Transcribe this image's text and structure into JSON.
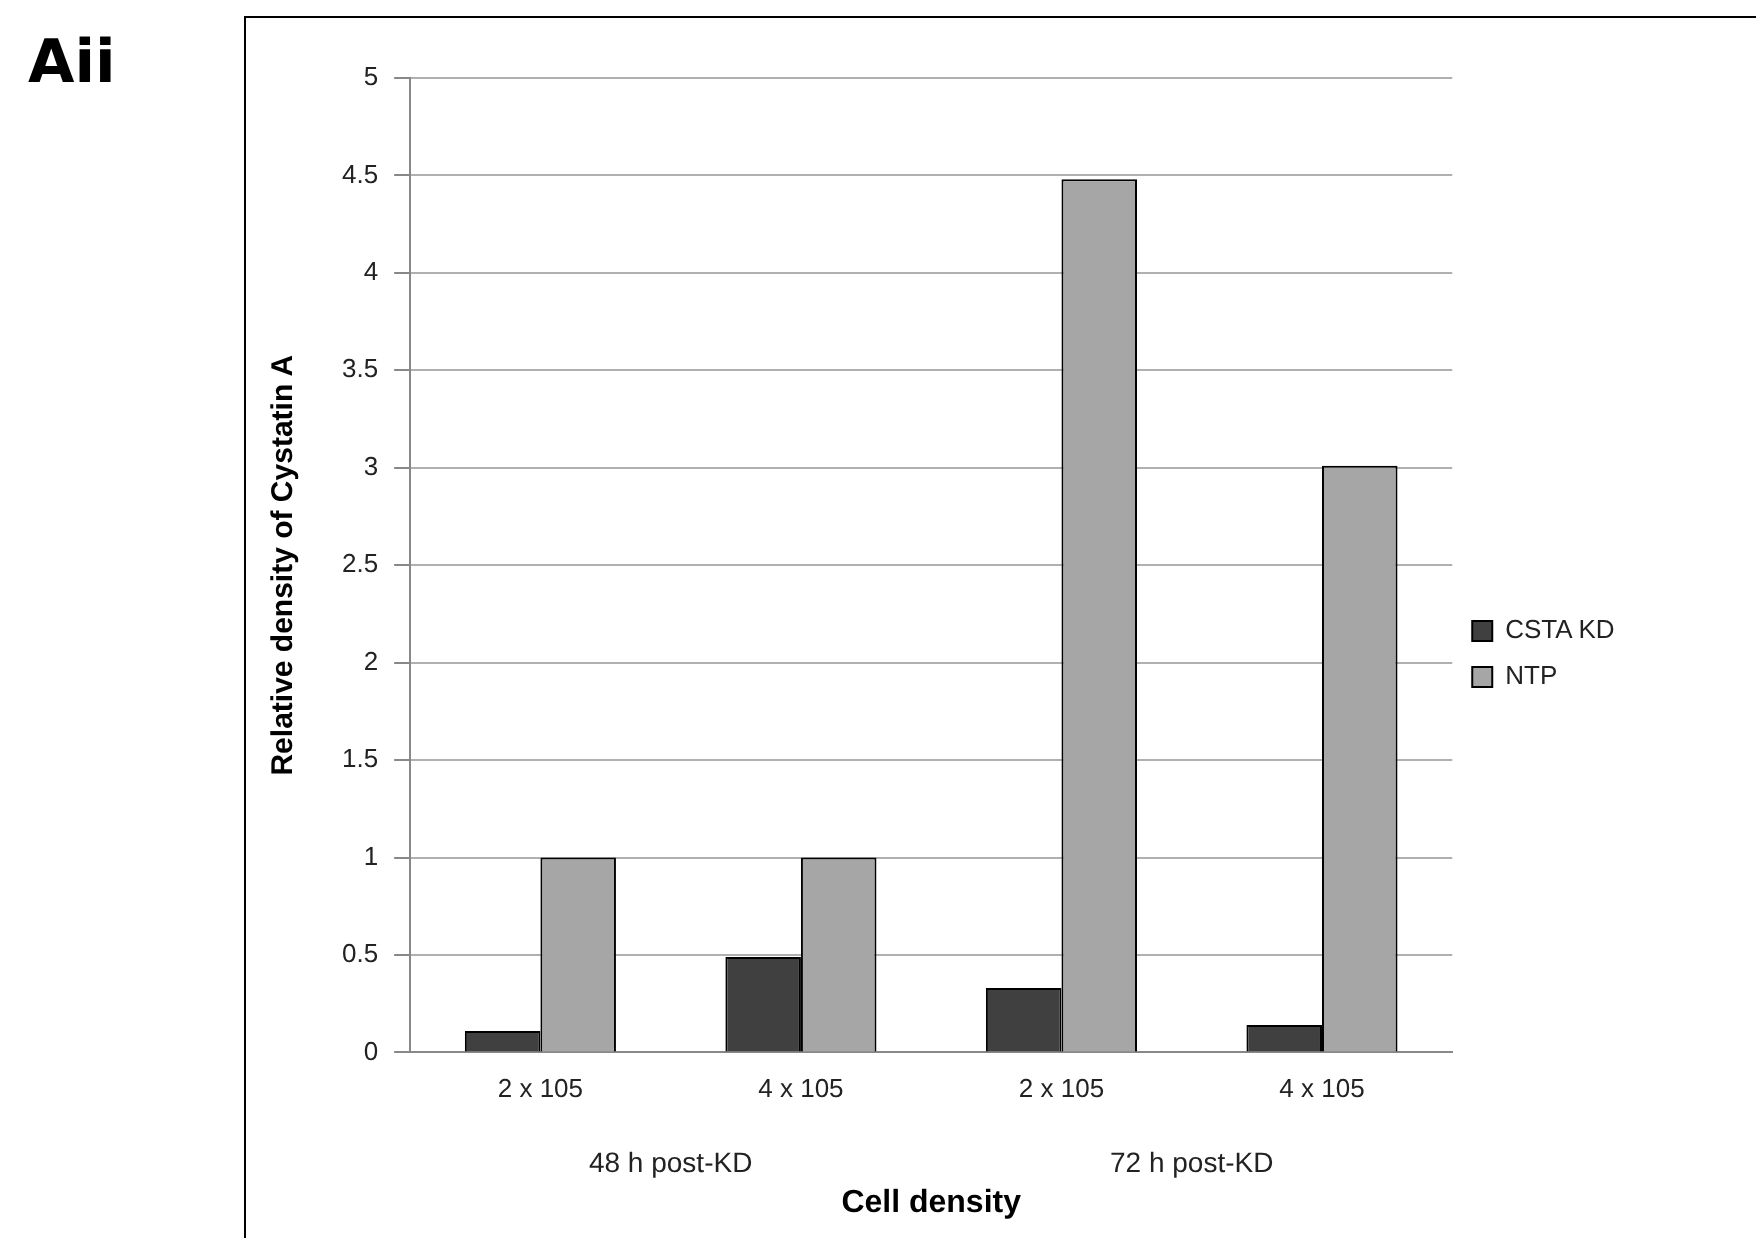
{
  "chart_data": {
    "type": "bar",
    "title": "Aii",
    "xlabel": "Cell density",
    "ylabel": "Relative density of Cystatin A",
    "categories": [
      "2 x 105",
      "4 x 105",
      "2 x 105",
      "4 x 105"
    ],
    "series": [
      {
        "name": "CSTA KD",
        "color": "#404040",
        "values": [
          0.11,
          0.49,
          0.33,
          0.14
        ]
      },
      {
        "name": "NTP",
        "color": "#a6a6a6",
        "values": [
          1.0,
          1.0,
          4.48,
          3.01
        ]
      }
    ],
    "annotations": [
      "48 h post-KD",
      "72 h post-KD"
    ],
    "ylim": [
      0,
      5
    ],
    "yticks": [
      0,
      0.5,
      1,
      1.5,
      2,
      2.5,
      3,
      3.5,
      4,
      4.5,
      5
    ],
    "grid": "y",
    "legend": "right"
  }
}
